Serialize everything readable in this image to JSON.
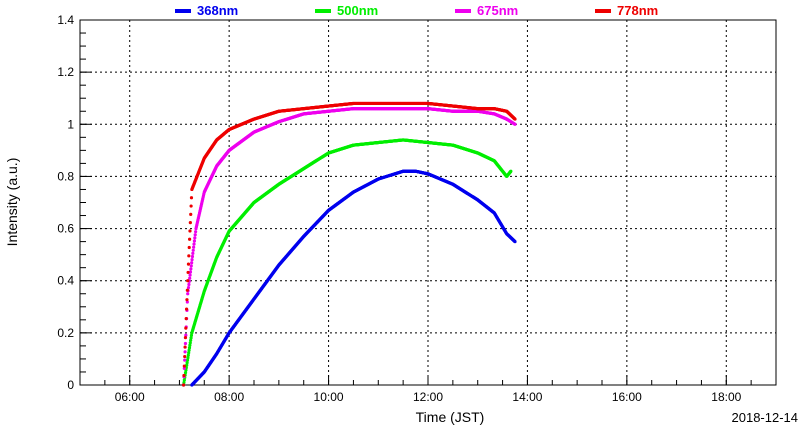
{
  "chart_data": {
    "type": "scatter",
    "xlabel": "Time (JST)",
    "ylabel": "Intensity (a.u.)",
    "date": "2018-12-14",
    "xlim": [
      "05:00",
      "19:00"
    ],
    "ylim": [
      0,
      1.4
    ],
    "x_ticks": [
      "06:00",
      "08:00",
      "10:00",
      "12:00",
      "14:00",
      "16:00",
      "18:00"
    ],
    "y_ticks": [
      "0",
      "0.2",
      "0.4",
      "0.6",
      "0.8",
      "1",
      "1.2",
      "1.4"
    ],
    "grid": true,
    "legend_position": "top",
    "series": [
      {
        "name": "368nm",
        "color": "#0000ee",
        "points": [
          [
            "07:15",
            0.0
          ],
          [
            "07:30",
            0.05
          ],
          [
            "07:45",
            0.12
          ],
          [
            "08:00",
            0.2
          ],
          [
            "08:30",
            0.33
          ],
          [
            "09:00",
            0.46
          ],
          [
            "09:30",
            0.57
          ],
          [
            "10:00",
            0.67
          ],
          [
            "10:30",
            0.74
          ],
          [
            "11:00",
            0.79
          ],
          [
            "11:30",
            0.82
          ],
          [
            "11:45",
            0.82
          ],
          [
            "12:00",
            0.81
          ],
          [
            "12:30",
            0.77
          ],
          [
            "13:00",
            0.71
          ],
          [
            "13:20",
            0.66
          ],
          [
            "13:35",
            0.58
          ],
          [
            "13:45",
            0.55
          ]
        ]
      },
      {
        "name": "500nm",
        "color": "#00ee00",
        "points": [
          [
            "07:05",
            0.0
          ],
          [
            "07:15",
            0.2
          ],
          [
            "07:30",
            0.36
          ],
          [
            "07:45",
            0.49
          ],
          [
            "08:00",
            0.59
          ],
          [
            "08:30",
            0.7
          ],
          [
            "09:00",
            0.77
          ],
          [
            "09:30",
            0.83
          ],
          [
            "10:00",
            0.89
          ],
          [
            "10:30",
            0.92
          ],
          [
            "11:00",
            0.93
          ],
          [
            "11:30",
            0.94
          ],
          [
            "12:00",
            0.93
          ],
          [
            "12:30",
            0.92
          ],
          [
            "13:00",
            0.89
          ],
          [
            "13:20",
            0.86
          ],
          [
            "13:35",
            0.8
          ],
          [
            "13:40",
            0.82
          ]
        ]
      },
      {
        "name": "675nm",
        "color": "#ee00ee",
        "points": [
          [
            "07:05",
            0.0
          ],
          [
            "07:10",
            0.35
          ],
          [
            "07:20",
            0.6
          ],
          [
            "07:30",
            0.74
          ],
          [
            "07:45",
            0.84
          ],
          [
            "08:00",
            0.9
          ],
          [
            "08:30",
            0.97
          ],
          [
            "09:00",
            1.01
          ],
          [
            "09:30",
            1.04
          ],
          [
            "10:00",
            1.05
          ],
          [
            "10:30",
            1.06
          ],
          [
            "11:00",
            1.06
          ],
          [
            "11:30",
            1.06
          ],
          [
            "12:00",
            1.06
          ],
          [
            "12:30",
            1.05
          ],
          [
            "13:00",
            1.05
          ],
          [
            "13:20",
            1.04
          ],
          [
            "13:35",
            1.02
          ],
          [
            "13:45",
            1.0
          ]
        ]
      },
      {
        "name": "778nm",
        "color": "#ee0000",
        "points": [
          [
            "07:05",
            0.0
          ],
          [
            "07:10",
            0.4
          ],
          [
            "07:15",
            0.75
          ],
          [
            "07:30",
            0.87
          ],
          [
            "07:45",
            0.94
          ],
          [
            "08:00",
            0.98
          ],
          [
            "08:30",
            1.02
          ],
          [
            "09:00",
            1.05
          ],
          [
            "09:30",
            1.06
          ],
          [
            "10:00",
            1.07
          ],
          [
            "10:30",
            1.08
          ],
          [
            "11:00",
            1.08
          ],
          [
            "11:30",
            1.08
          ],
          [
            "12:00",
            1.08
          ],
          [
            "12:30",
            1.07
          ],
          [
            "13:00",
            1.06
          ],
          [
            "13:20",
            1.06
          ],
          [
            "13:35",
            1.05
          ],
          [
            "13:45",
            1.02
          ]
        ]
      }
    ]
  }
}
